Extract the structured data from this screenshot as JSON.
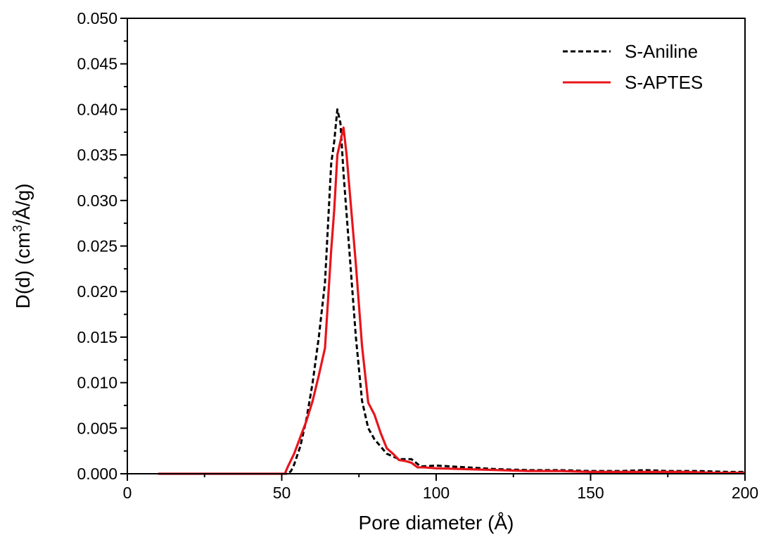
{
  "chart_data": {
    "type": "line",
    "xlabel": "Pore diameter (Å)",
    "ylabel": {
      "prefix": "D(d) (cm",
      "superscript": "3",
      "suffix": "/Å/g)"
    },
    "xlim": [
      0,
      200
    ],
    "ylim": [
      0,
      0.05
    ],
    "xticks": [
      "0",
      "50",
      "100",
      "150",
      "200"
    ],
    "yticks": [
      "0.000",
      "0.005",
      "0.010",
      "0.015",
      "0.020",
      "0.025",
      "0.030",
      "0.035",
      "0.040",
      "0.045",
      "0.050"
    ],
    "grid": false,
    "legend_position": "top-right",
    "series": [
      {
        "name": "S-Aniline",
        "color": "#000000",
        "dash": "dashed",
        "points": [
          [
            10,
            0
          ],
          [
            30,
            0
          ],
          [
            50,
            0
          ],
          [
            52,
            0
          ],
          [
            53,
            0.0003
          ],
          [
            54,
            0.001
          ],
          [
            56,
            0.003
          ],
          [
            58,
            0.006
          ],
          [
            60,
            0.01
          ],
          [
            62,
            0.015
          ],
          [
            64,
            0.021
          ],
          [
            66,
            0.034
          ],
          [
            67,
            0.0365
          ],
          [
            68,
            0.04
          ],
          [
            69,
            0.0385
          ],
          [
            70,
            0.033
          ],
          [
            72,
            0.024
          ],
          [
            74,
            0.015
          ],
          [
            76,
            0.008
          ],
          [
            78,
            0.005
          ],
          [
            80,
            0.0038
          ],
          [
            84,
            0.0022
          ],
          [
            88,
            0.0016
          ],
          [
            92,
            0.0016
          ],
          [
            95,
            0.0008
          ],
          [
            100,
            0.0009
          ],
          [
            110,
            0.0007
          ],
          [
            120,
            0.0005
          ],
          [
            130,
            0.0004
          ],
          [
            140,
            0.0004
          ],
          [
            150,
            0.0003
          ],
          [
            160,
            0.0003
          ],
          [
            168,
            0.0004
          ],
          [
            175,
            0.0003
          ],
          [
            185,
            0.0003
          ],
          [
            195,
            0.0002
          ],
          [
            200,
            0.0002
          ]
        ]
      },
      {
        "name": "S-APTES",
        "color": "#e8141b",
        "dash": "solid",
        "points": [
          [
            10,
            0
          ],
          [
            30,
            0
          ],
          [
            50,
            0
          ],
          [
            51,
            0
          ],
          [
            52,
            0.0008
          ],
          [
            54,
            0.0022
          ],
          [
            56,
            0.004
          ],
          [
            58,
            0.0058
          ],
          [
            60,
            0.008
          ],
          [
            62,
            0.0108
          ],
          [
            64,
            0.0138
          ],
          [
            66,
            0.0245
          ],
          [
            67,
            0.029
          ],
          [
            68,
            0.035
          ],
          [
            69,
            0.0365
          ],
          [
            70,
            0.038
          ],
          [
            71,
            0.035
          ],
          [
            72,
            0.031
          ],
          [
            74,
            0.023
          ],
          [
            76,
            0.014
          ],
          [
            78,
            0.0078
          ],
          [
            80,
            0.0065
          ],
          [
            82,
            0.0045
          ],
          [
            84,
            0.0028
          ],
          [
            86,
            0.0022
          ],
          [
            88,
            0.0015
          ],
          [
            90,
            0.0014
          ],
          [
            92,
            0.0012
          ],
          [
            94,
            0.0007
          ],
          [
            96,
            0.0007
          ],
          [
            100,
            0.0006
          ],
          [
            110,
            0.0005
          ],
          [
            120,
            0.0004
          ],
          [
            130,
            0.0003
          ],
          [
            140,
            0.0003
          ],
          [
            150,
            0.0002
          ],
          [
            160,
            0.0002
          ],
          [
            170,
            0.0002
          ],
          [
            180,
            0.0002
          ],
          [
            190,
            0.0001
          ],
          [
            200,
            0.0001
          ]
        ]
      }
    ]
  }
}
